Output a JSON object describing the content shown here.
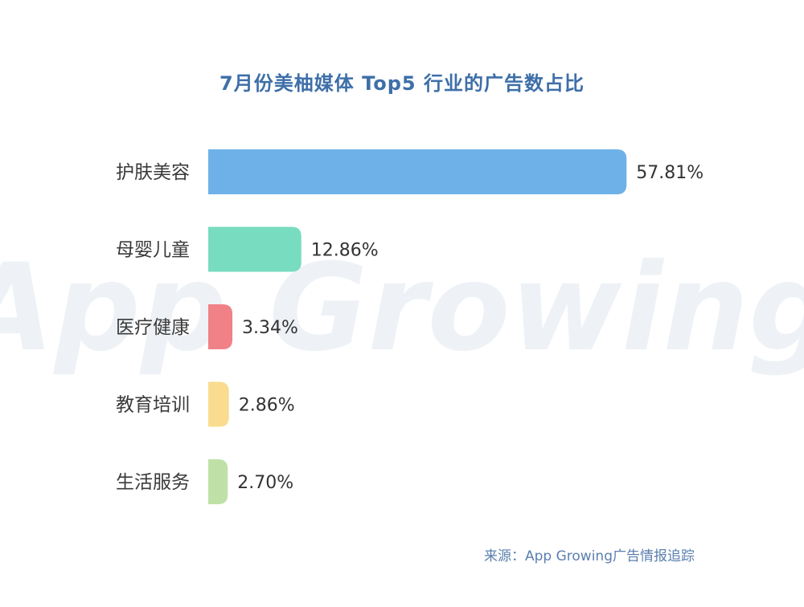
{
  "title": "7月份美柚媒体 Top5 行业的广告数占比",
  "source": "来源：App Growing广告情报追踪",
  "watermark": "App Growing",
  "chart_data": {
    "type": "bar",
    "orientation": "horizontal",
    "title": "7月份美柚媒体 Top5 行业的广告数占比",
    "categories": [
      "护肤美容",
      "母婴儿童",
      "医疗健康",
      "教育培训",
      "生活服务"
    ],
    "values": [
      57.81,
      12.86,
      3.34,
      2.86,
      2.7
    ],
    "value_labels": [
      "57.81%",
      "12.86%",
      "3.34%",
      "2.86%",
      "2.70%"
    ],
    "colors": [
      "#6eb1e8",
      "#78dcc0",
      "#ef8187",
      "#f9dc8f",
      "#bfe1a8"
    ],
    "unit": "%",
    "grid": false,
    "legend": "none"
  }
}
